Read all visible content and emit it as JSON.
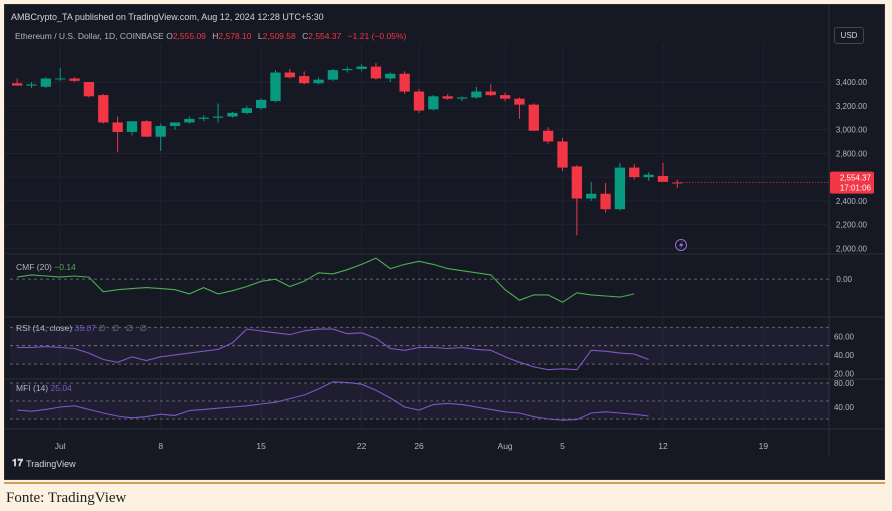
{
  "attribution": "AMBCrypto_TA published on TradingView.com, Aug 12, 2024 12:28 UTC+5:30",
  "legend": {
    "symbol": "Ethereum / U.S. Dollar, 1D, COINBASE",
    "o_label": "O",
    "o_val": "2,555.09",
    "h_label": "H",
    "h_val": "2,578.10",
    "l_label": "L",
    "l_val": "2,509.58",
    "c_label": "C",
    "c_val": "2,554.37",
    "change": "−1.21 (−0.05%)"
  },
  "currency_button": "USD",
  "price_tag": {
    "price": "2,554.37",
    "countdown": "17:01:06"
  },
  "indicators": {
    "cmf": {
      "label": "CMF (20)",
      "value": "−0.14",
      "tick": "0.00"
    },
    "rsi": {
      "label": "RSI (14, close)",
      "value": "35.07",
      "dots": "∅ ∅ ∅ ∅",
      "ticks": [
        "60.00",
        "40.00",
        "20.00"
      ]
    },
    "mfi": {
      "label": "MFI (14)",
      "value": "25.04",
      "ticks": [
        "80.00",
        "40.00"
      ]
    }
  },
  "brand": "TradingView",
  "caption": "Fonte: TradingView",
  "colors": {
    "up": "#089981",
    "down": "#f23645",
    "cmf_line": "#4caf50",
    "osc_line": "#7e57c2"
  },
  "chart_data": {
    "type": "candlestick",
    "price_axis": {
      "ylim": [
        1970,
        3720
      ],
      "ticks": [
        2000,
        2200,
        2400,
        2600,
        2800,
        3000,
        3200,
        3400
      ],
      "tick_labels": [
        "2,000.00",
        "2,200.00",
        "2,400.00",
        "2,600.00",
        "2,800.00",
        "3,000.00",
        "3,200.00",
        "3,400.00"
      ]
    },
    "x_axis": {
      "labels": [
        {
          "text": "Jul",
          "idx": 3
        },
        {
          "text": "8",
          "idx": 10
        },
        {
          "text": "15",
          "idx": 17
        },
        {
          "text": "22",
          "idx": 24
        },
        {
          "text": "26",
          "idx": 28
        },
        {
          "text": "Aug",
          "idx": 34
        },
        {
          "text": "5",
          "idx": 38
        },
        {
          "text": "12",
          "idx": 45
        },
        {
          "text": "19",
          "idx": 52
        }
      ],
      "total_slots": 57
    },
    "candles": [
      {
        "o": 3390,
        "h": 3430,
        "l": 3370,
        "c": 3370
      },
      {
        "o": 3370,
        "h": 3400,
        "l": 3350,
        "c": 3380
      },
      {
        "o": 3360,
        "h": 3440,
        "l": 3350,
        "c": 3430
      },
      {
        "o": 3430,
        "h": 3520,
        "l": 3410,
        "c": 3430
      },
      {
        "o": 3430,
        "h": 3440,
        "l": 3400,
        "c": 3410
      },
      {
        "o": 3400,
        "h": 3400,
        "l": 3270,
        "c": 3280
      },
      {
        "o": 3290,
        "h": 3300,
        "l": 3050,
        "c": 3060
      },
      {
        "o": 3060,
        "h": 3110,
        "l": 2810,
        "c": 2980
      },
      {
        "o": 2980,
        "h": 3070,
        "l": 2950,
        "c": 3070
      },
      {
        "o": 3070,
        "h": 3080,
        "l": 2940,
        "c": 2940
      },
      {
        "o": 2940,
        "h": 3050,
        "l": 2820,
        "c": 3030
      },
      {
        "o": 3030,
        "h": 3060,
        "l": 3000,
        "c": 3060
      },
      {
        "o": 3060,
        "h": 3110,
        "l": 3050,
        "c": 3090
      },
      {
        "o": 3090,
        "h": 3120,
        "l": 3070,
        "c": 3100
      },
      {
        "o": 3100,
        "h": 3220,
        "l": 3060,
        "c": 3110
      },
      {
        "o": 3110,
        "h": 3150,
        "l": 3100,
        "c": 3140
      },
      {
        "o": 3140,
        "h": 3200,
        "l": 3130,
        "c": 3180
      },
      {
        "o": 3180,
        "h": 3260,
        "l": 3170,
        "c": 3250
      },
      {
        "o": 3240,
        "h": 3500,
        "l": 3230,
        "c": 3480
      },
      {
        "o": 3480,
        "h": 3510,
        "l": 3430,
        "c": 3440
      },
      {
        "o": 3450,
        "h": 3490,
        "l": 3380,
        "c": 3390
      },
      {
        "o": 3390,
        "h": 3440,
        "l": 3380,
        "c": 3420
      },
      {
        "o": 3420,
        "h": 3510,
        "l": 3410,
        "c": 3500
      },
      {
        "o": 3500,
        "h": 3530,
        "l": 3480,
        "c": 3510
      },
      {
        "o": 3510,
        "h": 3550,
        "l": 3490,
        "c": 3530
      },
      {
        "o": 3530,
        "h": 3560,
        "l": 3420,
        "c": 3430
      },
      {
        "o": 3430,
        "h": 3480,
        "l": 3400,
        "c": 3470
      },
      {
        "o": 3470,
        "h": 3490,
        "l": 3300,
        "c": 3320
      },
      {
        "o": 3320,
        "h": 3340,
        "l": 3140,
        "c": 3160
      },
      {
        "o": 3170,
        "h": 3290,
        "l": 3160,
        "c": 3280
      },
      {
        "o": 3280,
        "h": 3300,
        "l": 3250,
        "c": 3260
      },
      {
        "o": 3260,
        "h": 3280,
        "l": 3240,
        "c": 3270
      },
      {
        "o": 3270,
        "h": 3360,
        "l": 3260,
        "c": 3320
      },
      {
        "o": 3320,
        "h": 3380,
        "l": 3280,
        "c": 3290
      },
      {
        "o": 3290,
        "h": 3310,
        "l": 3240,
        "c": 3260
      },
      {
        "o": 3260,
        "h": 3270,
        "l": 3090,
        "c": 3210
      },
      {
        "o": 3210,
        "h": 3220,
        "l": 2990,
        "c": 2990
      },
      {
        "o": 2990,
        "h": 3020,
        "l": 2880,
        "c": 2900
      },
      {
        "o": 2900,
        "h": 2930,
        "l": 2650,
        "c": 2680
      },
      {
        "o": 2690,
        "h": 2700,
        "l": 2110,
        "c": 2420
      },
      {
        "o": 2420,
        "h": 2560,
        "l": 2400,
        "c": 2460
      },
      {
        "o": 2460,
        "h": 2550,
        "l": 2300,
        "c": 2330
      },
      {
        "o": 2330,
        "h": 2720,
        "l": 2320,
        "c": 2680
      },
      {
        "o": 2680,
        "h": 2710,
        "l": 2580,
        "c": 2600
      },
      {
        "o": 2600,
        "h": 2640,
        "l": 2570,
        "c": 2620
      },
      {
        "o": 2610,
        "h": 2720,
        "l": 2560,
        "c": 2560
      },
      {
        "o": 2555,
        "h": 2578,
        "l": 2510,
        "c": 2554
      }
    ],
    "cmf": {
      "ylim": [
        -0.35,
        0.22
      ],
      "values": [
        0.02,
        0.04,
        0.03,
        0.02,
        0.03,
        0.02,
        -0.12,
        -0.1,
        -0.09,
        -0.08,
        -0.09,
        -0.1,
        -0.14,
        -0.08,
        -0.14,
        -0.11,
        -0.07,
        -0.02,
        0.0,
        -0.07,
        -0.02,
        0.06,
        0.05,
        0.09,
        0.14,
        0.2,
        0.1,
        0.14,
        0.17,
        0.14,
        0.1,
        0.08,
        0.06,
        0.04,
        -0.1,
        -0.2,
        -0.15,
        -0.15,
        -0.22,
        -0.13,
        -0.15,
        -0.16,
        -0.17,
        -0.14
      ]
    },
    "rsi": {
      "ylim": [
        15,
        80
      ],
      "bands": [
        70,
        50,
        30
      ],
      "values": [
        48,
        48,
        49,
        48,
        47,
        42,
        35,
        32,
        38,
        34,
        38,
        40,
        42,
        44,
        46,
        53,
        68,
        66,
        64,
        62,
        66,
        68,
        68,
        63,
        64,
        58,
        47,
        45,
        48,
        48,
        47,
        48,
        46,
        45,
        38,
        32,
        27,
        24,
        25,
        24,
        45,
        44,
        42,
        41,
        35
      ]
    },
    "mfi": {
      "ylim": [
        5,
        85
      ],
      "bands": [
        80,
        50,
        20
      ],
      "values": [
        35,
        33,
        36,
        40,
        42,
        36,
        30,
        25,
        22,
        24,
        28,
        26,
        34,
        36,
        38,
        40,
        42,
        45,
        48,
        54,
        60,
        70,
        82,
        81,
        78,
        68,
        55,
        40,
        35,
        44,
        46,
        44,
        40,
        36,
        32,
        30,
        24,
        20,
        18,
        19,
        30,
        32,
        30,
        28,
        25
      ]
    }
  }
}
